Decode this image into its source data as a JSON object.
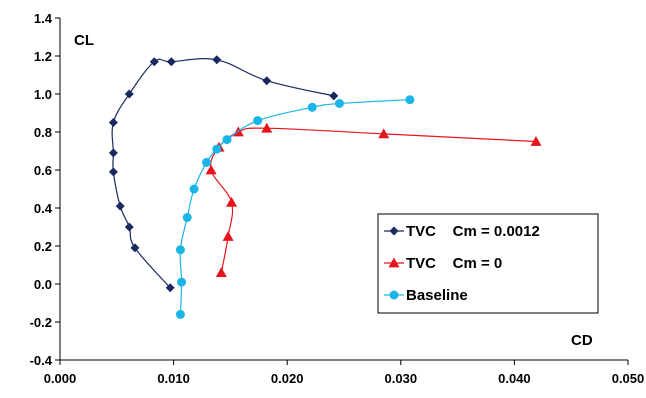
{
  "chart_data": {
    "type": "scatter",
    "title": "",
    "xlabel": "CD",
    "ylabel": "CL",
    "xlim": [
      0.0,
      0.05
    ],
    "ylim": [
      -0.4,
      1.4
    ],
    "xticks": [
      "0.000",
      "0.010",
      "0.020",
      "0.030",
      "0.040",
      "0.050"
    ],
    "xtick_values": [
      0.0,
      0.01,
      0.02,
      0.03,
      0.04,
      0.05
    ],
    "yticks": [
      "1.4",
      "1.2",
      "1.0",
      "0.8",
      "0.6",
      "0.4",
      "0.2",
      "0.0",
      "-0.2",
      "-0.4"
    ],
    "ytick_values": [
      1.4,
      1.2,
      1.0,
      0.8,
      0.6,
      0.4,
      0.2,
      0.0,
      -0.2,
      -0.4
    ],
    "grid": false,
    "legend_position": "right",
    "series": [
      {
        "name": "TVC    Cm = 0.0012",
        "color": "#1a2a5e",
        "marker": "diamond",
        "x": [
          0.0097,
          0.0066,
          0.0061,
          0.0053,
          0.0047,
          0.0047,
          0.0047,
          0.0061,
          0.0083,
          0.0098,
          0.0138,
          0.0182,
          0.0241
        ],
        "y": [
          -0.02,
          0.19,
          0.3,
          0.41,
          0.59,
          0.69,
          0.85,
          1.0,
          1.17,
          1.17,
          1.18,
          1.07,
          0.99
        ]
      },
      {
        "name": "TVC    Cm = 0",
        "color": "#e8141b",
        "marker": "triangle",
        "x": [
          0.0142,
          0.0148,
          0.0151,
          0.0133,
          0.014,
          0.0157,
          0.0182,
          0.0285,
          0.0419
        ],
        "y": [
          0.06,
          0.25,
          0.43,
          0.6,
          0.72,
          0.8,
          0.82,
          0.79,
          0.75
        ]
      },
      {
        "name": "Baseline",
        "color": "#1ab4e6",
        "marker": "circle",
        "x": [
          0.0106,
          0.0107,
          0.0106,
          0.0112,
          0.0118,
          0.0129,
          0.0138,
          0.0147,
          0.0174,
          0.0222,
          0.0246,
          0.0308
        ],
        "y": [
          -0.16,
          0.01,
          0.18,
          0.35,
          0.5,
          0.64,
          0.71,
          0.76,
          0.86,
          0.93,
          0.95,
          0.97
        ]
      }
    ]
  }
}
